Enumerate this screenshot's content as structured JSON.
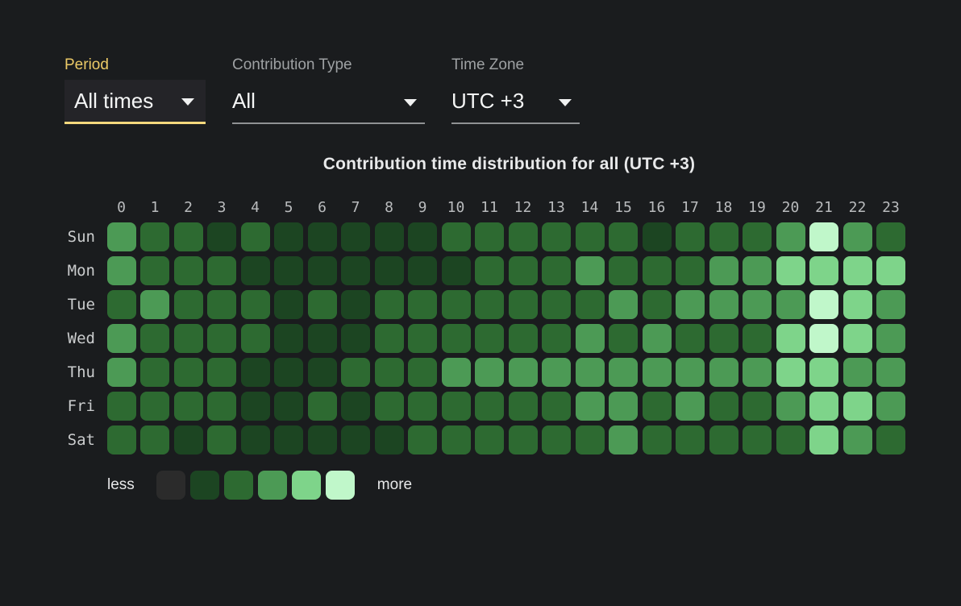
{
  "controls": {
    "period": {
      "label": "Period",
      "value": "All times"
    },
    "contribution_type": {
      "label": "Contribution Type",
      "value": "All"
    },
    "time_zone": {
      "label": "Time Zone",
      "value": "UTC +3"
    }
  },
  "chart_data": {
    "type": "heatmap",
    "title": "Contribution time distribution for all (UTC +3)",
    "x_labels": [
      "0",
      "1",
      "2",
      "3",
      "4",
      "5",
      "6",
      "7",
      "8",
      "9",
      "10",
      "11",
      "12",
      "13",
      "14",
      "15",
      "16",
      "17",
      "18",
      "19",
      "20",
      "21",
      "22",
      "23"
    ],
    "y_labels": [
      "Sun",
      "Mon",
      "Tue",
      "Wed",
      "Thu",
      "Fri",
      "Sat"
    ],
    "series": [
      {
        "name": "Sun",
        "values": [
          3,
          2,
          2,
          1,
          2,
          1,
          1,
          1,
          1,
          1,
          2,
          2,
          2,
          2,
          2,
          2,
          1,
          2,
          2,
          2,
          3,
          5,
          3,
          2
        ]
      },
      {
        "name": "Mon",
        "values": [
          3,
          2,
          2,
          2,
          1,
          1,
          1,
          1,
          1,
          1,
          1,
          2,
          2,
          2,
          3,
          2,
          2,
          2,
          3,
          3,
          4,
          4,
          4,
          4
        ]
      },
      {
        "name": "Tue",
        "values": [
          2,
          3,
          2,
          2,
          2,
          1,
          2,
          1,
          2,
          2,
          2,
          2,
          2,
          2,
          2,
          3,
          2,
          3,
          3,
          3,
          3,
          5,
          4,
          3
        ]
      },
      {
        "name": "Wed",
        "values": [
          3,
          2,
          2,
          2,
          2,
          1,
          1,
          1,
          2,
          2,
          2,
          2,
          2,
          2,
          3,
          2,
          3,
          2,
          2,
          2,
          4,
          5,
          4,
          3
        ]
      },
      {
        "name": "Thu",
        "values": [
          3,
          2,
          2,
          2,
          1,
          1,
          1,
          2,
          2,
          2,
          3,
          3,
          3,
          3,
          3,
          3,
          3,
          3,
          3,
          3,
          4,
          4,
          3,
          3
        ]
      },
      {
        "name": "Fri",
        "values": [
          2,
          2,
          2,
          2,
          1,
          1,
          2,
          1,
          2,
          2,
          2,
          2,
          2,
          2,
          3,
          3,
          2,
          3,
          2,
          2,
          3,
          4,
          4,
          3
        ]
      },
      {
        "name": "Sat",
        "values": [
          2,
          2,
          1,
          2,
          1,
          1,
          1,
          1,
          1,
          2,
          2,
          2,
          2,
          2,
          2,
          3,
          2,
          2,
          2,
          2,
          2,
          4,
          3,
          2
        ]
      }
    ],
    "value_scale": {
      "levels": [
        0,
        1,
        2,
        3,
        4,
        5
      ],
      "colors": [
        "#2b2b2b",
        "#1c4522",
        "#2d6a31",
        "#4c9a55",
        "#7ed48a",
        "#c0f7ca"
      ]
    },
    "legend": {
      "less_label": "less",
      "more_label": "more",
      "position": "bottom-left"
    },
    "colors": {
      "background": "#1a1c1e",
      "accent_yellow": "#ecca67",
      "underline_yellow": "#f5d87d",
      "label_gray": "#9ea1a3"
    }
  }
}
